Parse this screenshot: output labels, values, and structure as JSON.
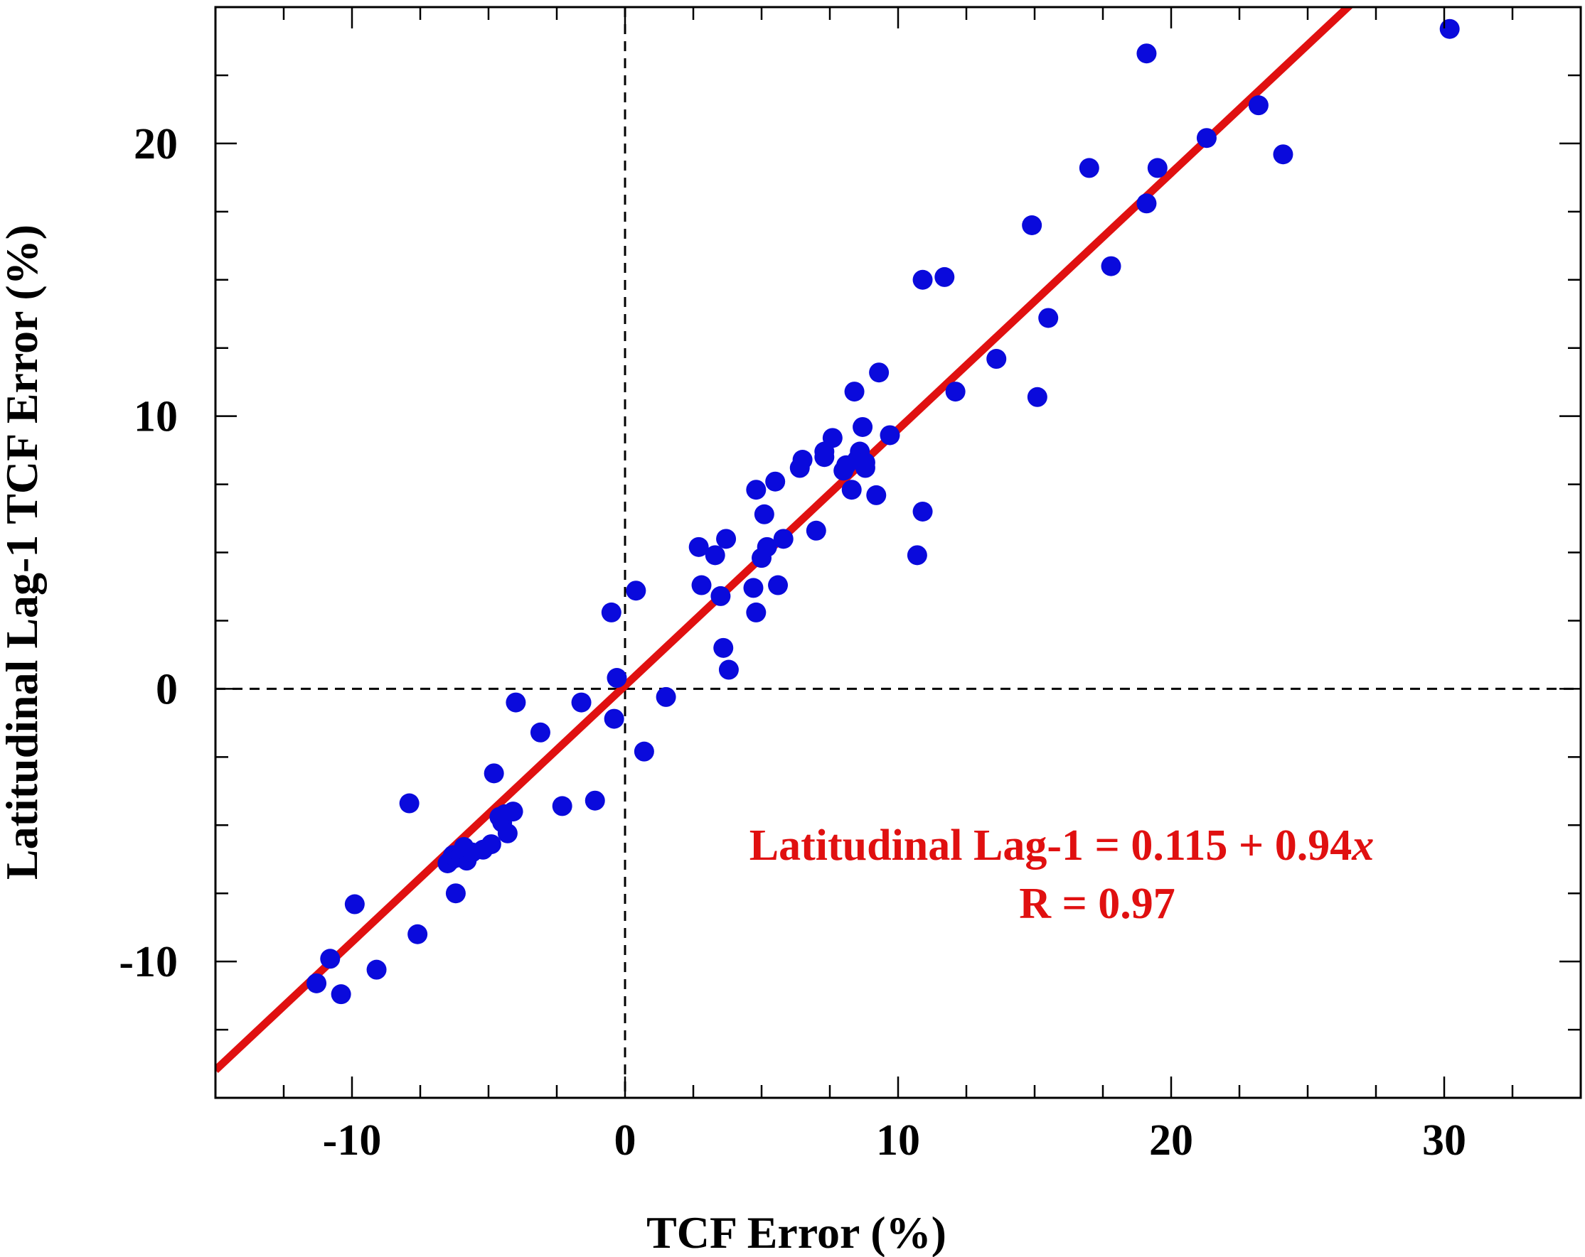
{
  "chart_data": {
    "type": "scatter",
    "title": "",
    "xlabel": "TCF Error (%)",
    "ylabel": "Latitudinal Lag-1 TCF Error (%)",
    "xlim": [
      -15,
      35
    ],
    "ylim": [
      -15,
      25
    ],
    "x_ticks": [
      -10,
      0,
      10,
      20,
      30
    ],
    "y_ticks": [
      -10,
      0,
      10,
      20
    ],
    "x_tick_labels": [
      "-10",
      "0",
      "10",
      "20",
      "30"
    ],
    "y_tick_labels": [
      "-10",
      "0",
      "10",
      "20"
    ],
    "x_minor_step": 2.5,
    "y_minor_step": 2.5,
    "grid": false,
    "reference_lines": {
      "x": 0,
      "y": 0,
      "style": "dashed"
    },
    "point_color": "#0a0adc",
    "fit_color": "#e01010",
    "annotation": {
      "equation_prefix": "Latitudinal Lag-1 = 0.115 + 0.94",
      "equation_var": "x",
      "r_text": "R = 0.97"
    },
    "fit": {
      "intercept": 0.115,
      "slope": 0.94
    },
    "series": [
      {
        "x": [
          -11.3,
          -10.8,
          -10.4,
          -9.9,
          -9.1,
          -7.6,
          -7.9,
          -6.3,
          -6.4,
          -6.5,
          -6.2,
          -6.0,
          -5.8,
          -5.9,
          -6.2,
          -5.9,
          -5.6,
          -5.2,
          -4.9,
          -4.8,
          -4.6,
          -4.5,
          -4.3,
          -4.4,
          -4.1,
          -4.0,
          -3.1,
          -2.3,
          -1.6,
          -1.1,
          -0.5,
          -0.4,
          -0.3,
          0.4,
          0.7,
          1.5,
          2.7,
          2.8,
          3.3,
          3.5,
          3.6,
          3.7,
          3.8,
          4.7,
          4.8,
          4.8,
          5.0,
          5.1,
          5.2,
          5.5,
          5.6,
          5.8,
          6.4,
          6.5,
          7.0,
          7.3,
          7.3,
          7.6,
          8.0,
          8.1,
          8.3,
          8.4,
          8.5,
          8.7,
          8.6,
          8.8,
          8.8,
          9.3,
          9.2,
          9.7,
          10.7,
          10.9,
          10.9,
          11.7,
          12.1,
          13.6,
          14.9,
          15.1,
          15.5,
          17.0,
          17.8,
          19.1,
          19.1,
          19.5,
          21.3,
          23.2,
          24.1,
          30.2
        ],
        "y": [
          -10.8,
          -9.9,
          -11.2,
          -7.9,
          -10.3,
          -9.0,
          -4.2,
          -6.1,
          -6.3,
          -6.4,
          -6.2,
          -6.1,
          -6.3,
          -5.9,
          -7.5,
          -5.8,
          -6.0,
          -5.9,
          -5.7,
          -3.1,
          -4.7,
          -4.9,
          -5.3,
          -4.6,
          -4.5,
          -0.5,
          -1.6,
          -4.3,
          -0.5,
          -4.1,
          2.8,
          -1.1,
          0.4,
          3.6,
          -2.3,
          -0.3,
          5.2,
          3.8,
          4.9,
          3.4,
          1.5,
          5.5,
          0.7,
          3.7,
          2.8,
          7.3,
          4.8,
          6.4,
          5.2,
          7.6,
          3.8,
          5.5,
          8.1,
          8.4,
          5.8,
          8.5,
          8.7,
          9.2,
          8.0,
          8.2,
          7.3,
          10.9,
          8.4,
          9.6,
          8.7,
          8.3,
          8.1,
          11.6,
          7.1,
          9.3,
          4.9,
          15.0,
          6.5,
          15.1,
          10.9,
          12.1,
          17.0,
          10.7,
          13.6,
          19.1,
          15.5,
          23.3,
          17.8,
          19.1,
          20.2,
          21.4,
          19.6,
          24.2
        ]
      }
    ]
  }
}
